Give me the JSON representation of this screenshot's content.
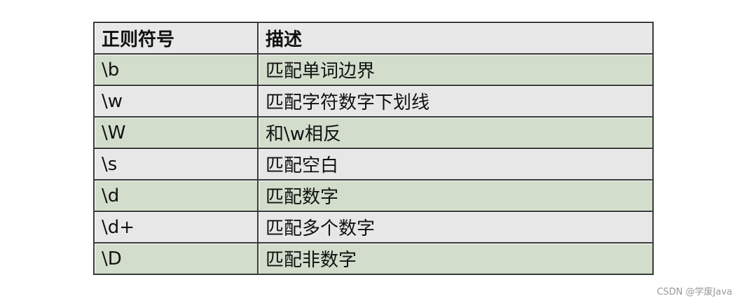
{
  "table": {
    "headers": [
      "正则符号",
      "描述"
    ],
    "rows": [
      [
        "\\b",
        "匹配单词边界"
      ],
      [
        "\\w",
        "匹配字符数字下划线"
      ],
      [
        "\\W",
        "和\\w相反"
      ],
      [
        "\\s",
        "匹配空白"
      ],
      [
        "\\d",
        "匹配数字"
      ],
      [
        "\\d+",
        "匹配多个数字"
      ],
      [
        "\\D",
        "匹配非数字"
      ]
    ]
  },
  "watermark": "CSDN @学废Java",
  "colors": {
    "header": "#e8e8e8",
    "row_green": "#d2ddcc",
    "row_gray": "#e7e7e7",
    "border": "#3a3a3a"
  }
}
